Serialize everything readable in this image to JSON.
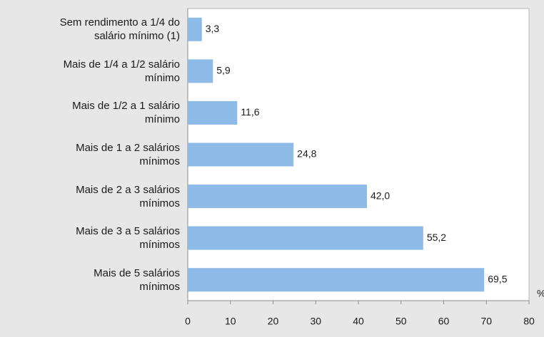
{
  "chart_data": {
    "type": "bar",
    "orientation": "horizontal",
    "categories": [
      "Sem rendimento a 1/4 do\nsalário mínimo (1)",
      "Mais de 1/4 a 1/2 salário\nmínimo",
      "Mais de 1/2 a 1 salário\nmínimo",
      "Mais de 1 a 2 salários\nmínimos",
      "Mais de 2 a 3 salários\nmínimos",
      "Mais de 3 a 5 salários\nmínimos",
      "Mais de 5 salários\nmínimos"
    ],
    "values": [
      3.3,
      5.9,
      11.6,
      24.8,
      42.0,
      55.2,
      69.5
    ],
    "value_labels": [
      "3,3",
      "5,9",
      "11,6",
      "24,8",
      "42,0",
      "55,2",
      "69,5"
    ],
    "color": "#8dbae6",
    "xlabel": "%",
    "xlim": [
      0,
      80
    ],
    "xticks": [
      0,
      10,
      20,
      30,
      40,
      50,
      60,
      70,
      80
    ],
    "grid": false
  }
}
